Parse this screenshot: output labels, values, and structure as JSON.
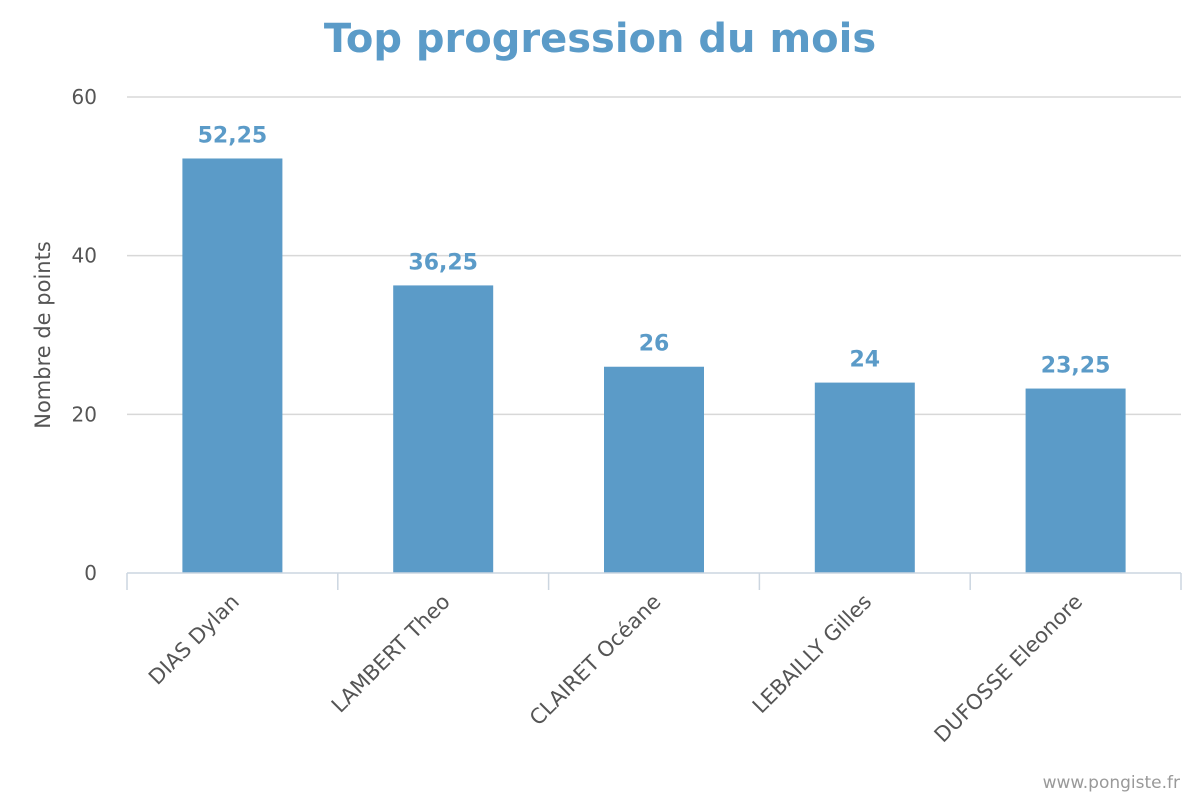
{
  "chart_data": {
    "type": "bar",
    "title": "Top progression du mois",
    "ylabel": "Nombre de points",
    "xlabel": "",
    "categories": [
      "DIAS Dylan",
      "LAMBERT Theo",
      "CLAIRET Océane",
      "LEBAILLY Gilles",
      "DUFOSSE Eleonore"
    ],
    "values": [
      52.25,
      36.25,
      26,
      24,
      23.25
    ],
    "value_labels": [
      "52,25",
      "36,25",
      "26",
      "24",
      "23,25"
    ],
    "ylim": [
      0,
      60
    ],
    "yticks": [
      0,
      20,
      40,
      60
    ],
    "grid": true,
    "legend": "none",
    "bar_color": "#5b9bc8",
    "credit": "www.pongiste.fr"
  }
}
